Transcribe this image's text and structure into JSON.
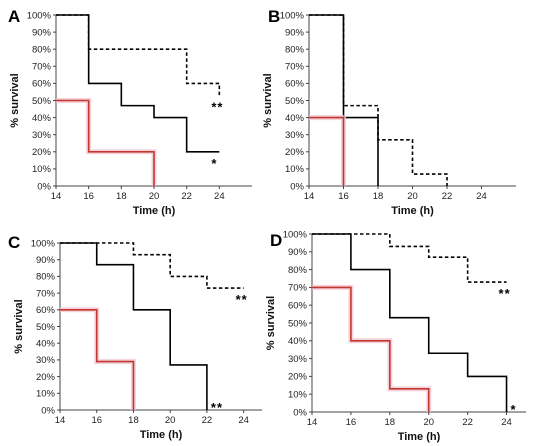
{
  "chart_data": [
    {
      "type": "line",
      "panel_label": "A",
      "xlabel": "Time (h)",
      "ylabel": "% survival",
      "xlim": [
        14,
        26
      ],
      "ylim": [
        0,
        100
      ],
      "x_ticks": [
        "14",
        "16",
        "18",
        "20",
        "22",
        "24"
      ],
      "y_ticks": [
        "0%",
        "10%",
        "20%",
        "30%",
        "40%",
        "50%",
        "60%",
        "70%",
        "80%",
        "90%",
        "100%"
      ],
      "step": true,
      "series": [
        {
          "style": "dashed",
          "color": "#000000",
          "x": [
            14,
            16,
            22,
            24
          ],
          "y": [
            100,
            80,
            60,
            53
          ],
          "end": 24,
          "annotation": "**"
        },
        {
          "style": "solid",
          "color": "#000000",
          "x": [
            14,
            16,
            18,
            20,
            22,
            24
          ],
          "y": [
            100,
            60,
            47,
            40,
            20,
            20
          ],
          "end": 24,
          "annotation": "*"
        },
        {
          "style": "solid",
          "color": "#c0392b",
          "x": [
            14,
            16,
            20
          ],
          "y": [
            50,
            20,
            0
          ],
          "end": 20,
          "annotation": ""
        }
      ],
      "grid": false
    },
    {
      "type": "line",
      "panel_label": "B",
      "xlabel": "Time (h)",
      "ylabel": "% survival",
      "xlim": [
        14,
        26
      ],
      "ylim": [
        0,
        100
      ],
      "x_ticks": [
        "14",
        "16",
        "18",
        "20",
        "22",
        "24"
      ],
      "y_ticks": [
        "0%",
        "10%",
        "20%",
        "30%",
        "40%",
        "50%",
        "60%",
        "70%",
        "80%",
        "90%",
        "100%"
      ],
      "step": true,
      "series": [
        {
          "style": "dashed",
          "color": "#000000",
          "x": [
            14,
            16,
            18,
            20,
            22
          ],
          "y": [
            100,
            47,
            27,
            7,
            0
          ],
          "end": 22,
          "annotation": ""
        },
        {
          "style": "solid",
          "color": "#000000",
          "x": [
            14,
            16,
            18
          ],
          "y": [
            100,
            40,
            0
          ],
          "end": 18,
          "annotation": ""
        },
        {
          "style": "solid",
          "color": "#c0392b",
          "x": [
            14,
            16
          ],
          "y": [
            40,
            0
          ],
          "end": 16,
          "annotation": ""
        }
      ],
      "grid": false
    },
    {
      "type": "line",
      "panel_label": "C",
      "xlabel": "Time (h)",
      "ylabel": "% survival",
      "xlim": [
        14,
        25
      ],
      "ylim": [
        0,
        100
      ],
      "x_ticks": [
        "14",
        "16",
        "18",
        "20",
        "22",
        "24"
      ],
      "y_ticks": [
        "0%",
        "10%",
        "20%",
        "30%",
        "40%",
        "50%",
        "60%",
        "70%",
        "80%",
        "90%",
        "100%"
      ],
      "step": true,
      "series": [
        {
          "style": "dashed",
          "color": "#000000",
          "x": [
            14,
            18,
            20,
            22,
            24
          ],
          "y": [
            100,
            93,
            80,
            73,
            73
          ],
          "end": 24,
          "annotation": "**"
        },
        {
          "style": "solid",
          "color": "#000000",
          "x": [
            14,
            16,
            18,
            20,
            22
          ],
          "y": [
            100,
            87,
            60,
            27,
            0
          ],
          "end": 22,
          "annotation": "**"
        },
        {
          "style": "solid",
          "color": "#c0392b",
          "x": [
            14,
            16,
            18
          ],
          "y": [
            60,
            29,
            0
          ],
          "end": 18,
          "annotation": ""
        }
      ],
      "grid": false
    },
    {
      "type": "line",
      "panel_label": "D",
      "xlabel": "Time (h)",
      "ylabel": "% survival",
      "xlim": [
        14,
        25
      ],
      "ylim": [
        0,
        100
      ],
      "x_ticks": [
        "14",
        "16",
        "18",
        "20",
        "22",
        "24"
      ],
      "y_ticks": [
        "0%",
        "10%",
        "20%",
        "30%",
        "40%",
        "50%",
        "60%",
        "70%",
        "80%",
        "90%",
        "100%"
      ],
      "step": true,
      "series": [
        {
          "style": "dashed",
          "color": "#000000",
          "x": [
            14,
            18,
            20,
            22,
            24
          ],
          "y": [
            100,
            93,
            87,
            73,
            73
          ],
          "end": 24,
          "annotation": "**"
        },
        {
          "style": "solid",
          "color": "#000000",
          "x": [
            14,
            16,
            18,
            20,
            22,
            24
          ],
          "y": [
            100,
            80,
            53,
            33,
            20,
            0
          ],
          "end": 24,
          "annotation": "*"
        },
        {
          "style": "solid",
          "color": "#c0392b",
          "x": [
            14,
            16,
            18,
            20
          ],
          "y": [
            70,
            40,
            13,
            0
          ],
          "end": 20,
          "annotation": ""
        }
      ],
      "grid": false
    }
  ]
}
